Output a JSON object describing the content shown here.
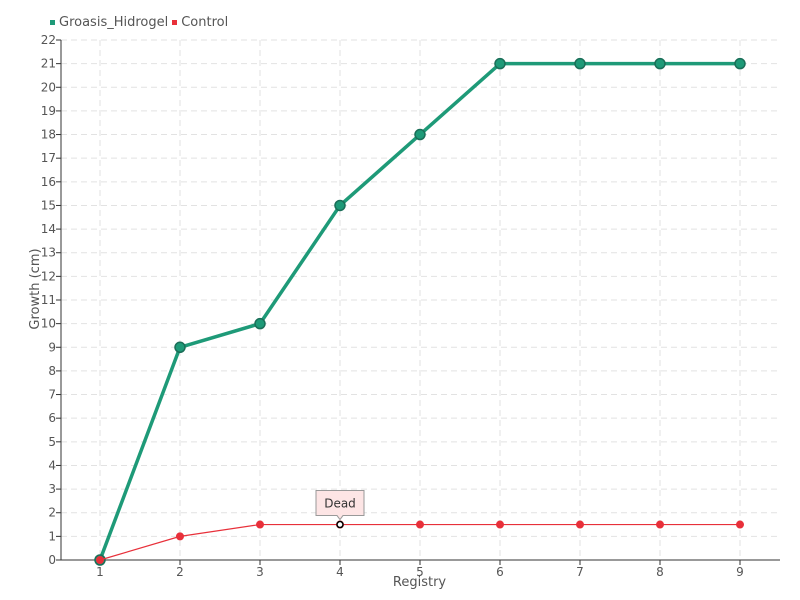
{
  "chart_data": {
    "type": "line",
    "xlabel": "Registry",
    "ylabel": "Growth (cm)",
    "x": [
      1,
      2,
      3,
      4,
      5,
      6,
      7,
      8,
      9
    ],
    "ylim": [
      0,
      22
    ],
    "y_ticks": [
      0,
      1,
      2,
      3,
      4,
      5,
      6,
      7,
      8,
      9,
      10,
      11,
      12,
      13,
      14,
      15,
      16,
      17,
      18,
      19,
      20,
      21,
      22
    ],
    "grid": true,
    "legend_position": "top-left",
    "series": [
      {
        "name": "Groasis_Hidrogel",
        "color": "#1e9a78",
        "values": [
          0,
          9,
          10,
          15,
          18,
          21,
          21,
          21,
          21
        ]
      },
      {
        "name": "Control",
        "color": "#e8303a",
        "values": [
          0,
          1,
          1.5,
          1.5,
          1.5,
          1.5,
          1.5,
          1.5,
          1.5
        ]
      }
    ],
    "annotation": {
      "text": "Dead",
      "series": "Control",
      "x": 4,
      "y": 1.5
    }
  }
}
